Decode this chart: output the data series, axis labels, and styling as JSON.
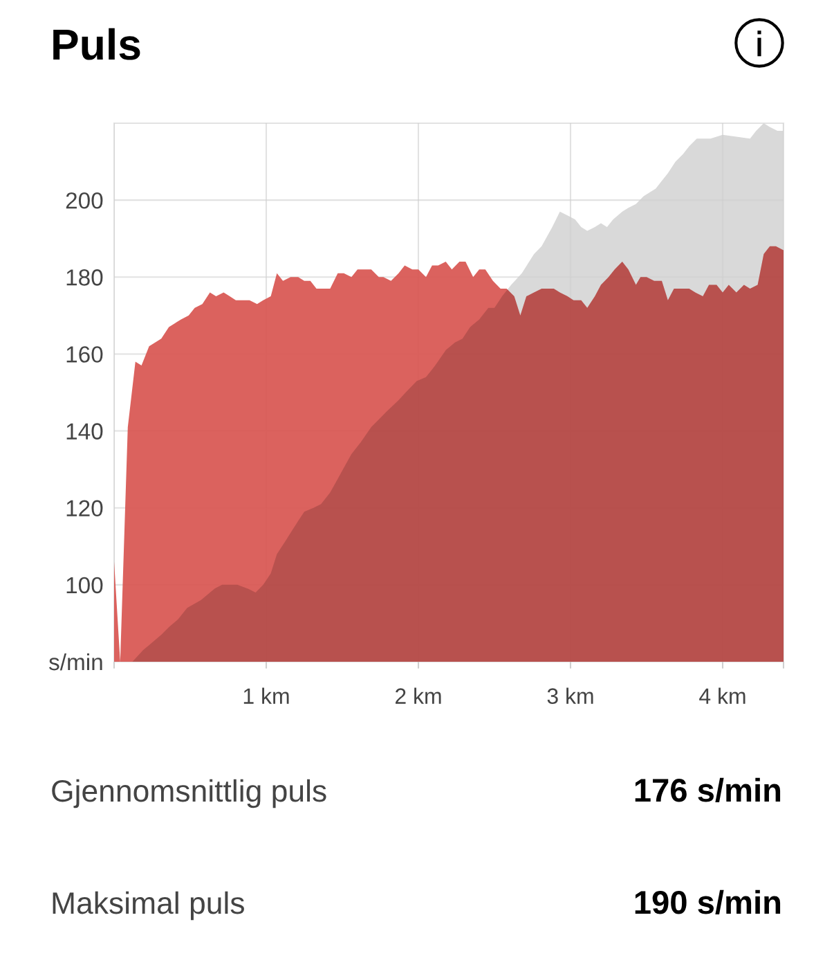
{
  "chart_data": {
    "type": "area",
    "title": "Puls",
    "xlim": [
      0,
      4.4
    ],
    "xticks": [
      {
        "value": 0,
        "label": null
      },
      {
        "value": 1,
        "label": "1 km"
      },
      {
        "value": 2,
        "label": "2 km"
      },
      {
        "value": 3,
        "label": "3 km"
      },
      {
        "value": 4,
        "label": "4 km"
      },
      {
        "value": 4.4,
        "label": null
      }
    ],
    "ylim": [
      80,
      220
    ],
    "yticks": [
      {
        "value": 80,
        "label": "s/min"
      },
      100,
      120,
      140,
      160,
      180,
      200
    ],
    "grid": true,
    "series": [
      {
        "color": "#d85652",
        "x": [
          0,
          0.04,
          0.09,
          0.14,
          0.18,
          0.23,
          0.27,
          0.31,
          0.36,
          0.4,
          0.44,
          0.49,
          0.53,
          0.58,
          0.63,
          0.67,
          0.72,
          0.76,
          0.8,
          0.89,
          0.94,
          0.98,
          1.03,
          1.07,
          1.11,
          1.16,
          1.21,
          1.25,
          1.29,
          1.33,
          1.42,
          1.47,
          1.51,
          1.56,
          1.6,
          1.69,
          1.74,
          1.77,
          1.82,
          1.87,
          1.91,
          1.96,
          2.0,
          2.05,
          2.09,
          2.13,
          2.18,
          2.22,
          2.27,
          2.31,
          2.36,
          2.4,
          2.44,
          2.49,
          2.54,
          2.58,
          2.63,
          2.67,
          2.71,
          2.76,
          2.81,
          2.89,
          2.93,
          2.98,
          3.02,
          3.07,
          3.11,
          3.16,
          3.2,
          3.25,
          3.29,
          3.34,
          3.38,
          3.43,
          3.46,
          3.5,
          3.55,
          3.6,
          3.64,
          3.68,
          3.78,
          3.82,
          3.87,
          3.91,
          3.96,
          4.0,
          4.04,
          4.09,
          4.14,
          4.18,
          4.23,
          4.27,
          4.31,
          4.35,
          4.4
        ],
        "values": [
          106,
          80,
          141,
          158,
          157,
          162,
          163,
          164,
          167,
          168,
          169,
          170,
          172,
          173,
          176,
          175,
          176,
          175,
          174,
          174,
          173,
          174,
          175,
          181,
          179,
          180,
          180,
          179,
          179,
          177,
          177,
          181,
          181,
          180,
          182,
          182,
          180,
          180,
          179,
          181,
          183,
          182,
          182,
          180,
          183,
          183,
          184,
          182,
          184,
          184,
          180,
          182,
          182,
          179,
          177,
          177,
          175,
          170,
          175,
          176,
          177,
          177,
          176,
          175,
          174,
          174,
          172,
          175,
          178,
          180,
          182,
          184,
          182,
          178,
          180,
          180,
          179,
          179,
          174,
          177,
          177,
          176,
          175,
          178,
          178,
          176,
          178,
          176,
          178,
          177,
          178,
          186,
          188,
          188,
          187
        ]
      },
      {
        "color": "#d9d9d9",
        "x": [
          0,
          0.12,
          0.19,
          0.25,
          0.31,
          0.36,
          0.42,
          0.48,
          0.57,
          0.66,
          0.71,
          0.81,
          0.88,
          0.93,
          0.98,
          1.03,
          1.07,
          1.12,
          1.2,
          1.25,
          1.31,
          1.36,
          1.42,
          1.49,
          1.56,
          1.62,
          1.69,
          1.74,
          1.79,
          1.87,
          1.94,
          1.99,
          2.05,
          2.11,
          2.18,
          2.24,
          2.29,
          2.34,
          2.4,
          2.46,
          2.5,
          2.55,
          2.61,
          2.68,
          2.76,
          2.81,
          2.88,
          2.93,
          2.98,
          3.03,
          3.07,
          3.11,
          3.16,
          3.2,
          3.24,
          3.28,
          3.34,
          3.38,
          3.43,
          3.48,
          3.56,
          3.6,
          3.64,
          3.69,
          3.74,
          3.78,
          3.83,
          3.87,
          3.92,
          4.0,
          4.18,
          4.22,
          4.27,
          4.31,
          4.36,
          4.4
        ],
        "values": [
          80,
          80,
          83,
          85,
          87,
          89,
          91,
          94,
          96,
          99,
          100,
          100,
          99,
          98,
          100,
          103,
          108,
          111,
          116,
          119,
          120,
          121,
          124,
          129,
          134,
          137,
          141,
          143,
          145,
          148,
          151,
          153,
          154,
          157,
          161,
          163,
          164,
          167,
          169,
          172,
          172,
          175,
          178,
          181,
          186,
          188,
          193,
          197,
          196,
          195,
          193,
          192,
          193,
          194,
          193,
          195,
          197,
          198,
          199,
          201,
          203,
          205,
          207,
          210,
          212,
          214,
          216,
          216,
          216,
          217,
          216,
          218,
          220,
          219,
          218,
          218
        ]
      }
    ],
    "annotations": [
      "Gjennomsnittlig puls",
      "176 s/min",
      "Maksimal puls",
      "190 s/min"
    ]
  }
}
